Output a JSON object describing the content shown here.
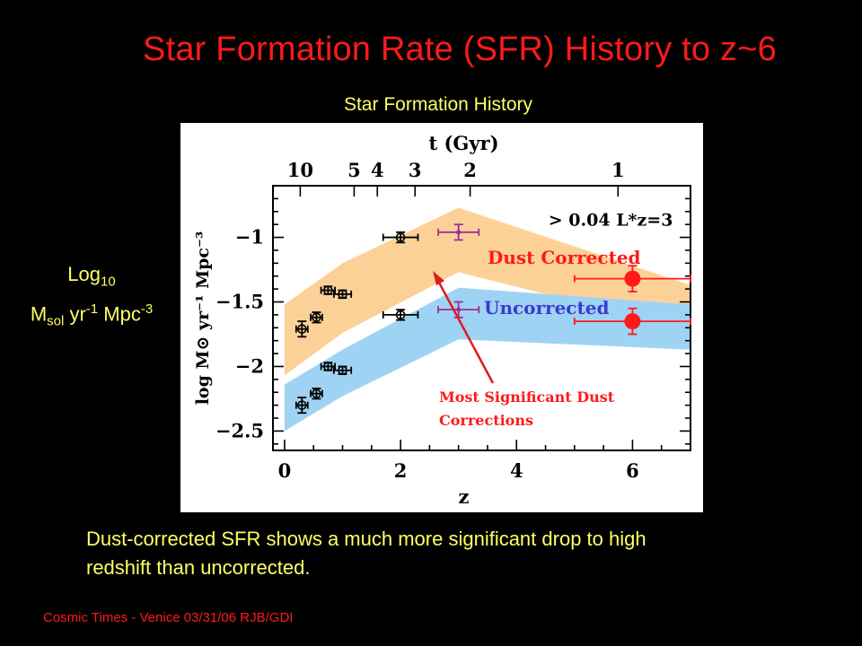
{
  "slide": {
    "title": "Star Formation Rate (SFR) History to z~6",
    "subtitle": "Star Formation History",
    "ylabel": {
      "main1": "Log",
      "sub1": "10",
      "m": "M",
      "m_sub": "sol",
      "yr": " yr",
      "yr_sup": "-1",
      "mpc": " Mpc",
      "mpc_sup": "-3"
    },
    "caption": "Dust-corrected SFR shows a much more significant drop to high redshift than uncorrected.",
    "footer": "Cosmic Times - Venice 03/31/06  RJB/GDI"
  },
  "chart_data": {
    "type": "scatter",
    "xlabel": "z",
    "ylabel": "log M⊙ yr⁻¹ Mpc⁻³",
    "top_axis_label": "t (Gyr)",
    "xlim": [
      -0.2,
      7
    ],
    "ylim": [
      -2.65,
      -0.6
    ],
    "x_ticks": [
      "0",
      "2",
      "4",
      "6"
    ],
    "y_ticks": [
      "-1",
      "-1.5",
      "-2",
      "-2.5"
    ],
    "top_ticks": [
      {
        "label": "10",
        "z": 0.27
      },
      {
        "label": "5",
        "z": 1.2
      },
      {
        "label": "4",
        "z": 1.6
      },
      {
        "label": "3",
        "z": 2.25
      },
      {
        "label": "2",
        "z": 3.2
      },
      {
        "label": "1",
        "z": 5.75
      }
    ],
    "luminosity_label": "> 0.04 L*z=3",
    "bands": [
      {
        "name": "Dust Corrected",
        "color": "#fcd198",
        "upper": [
          [
            0,
            -1.52
          ],
          [
            1,
            -1.2
          ],
          [
            3,
            -0.77
          ],
          [
            7,
            -1.37
          ]
        ],
        "lower": [
          [
            0,
            -2.07
          ],
          [
            1,
            -1.74
          ],
          [
            3,
            -1.27
          ],
          [
            7,
            -1.72
          ]
        ]
      },
      {
        "name": "Uncorrected",
        "color": "#9fd3f3",
        "upper": [
          [
            0,
            -2.14
          ],
          [
            1,
            -1.87
          ],
          [
            3,
            -1.39
          ],
          [
            7,
            -1.52
          ]
        ],
        "lower": [
          [
            0,
            -2.5
          ],
          [
            1,
            -2.23
          ],
          [
            3,
            -1.79
          ],
          [
            7,
            -1.87
          ]
        ]
      }
    ],
    "series": [
      {
        "name": "Dust Corrected",
        "points": [
          {
            "x": 0.3,
            "y": -1.71,
            "xerr": 0.1,
            "yerr": 0.06
          },
          {
            "x": 0.55,
            "y": -1.62,
            "xerr": 0.1,
            "yerr": 0.04
          },
          {
            "x": 0.75,
            "y": -1.41,
            "xerr": 0.12,
            "yerr": 0.03
          },
          {
            "x": 1.0,
            "y": -1.44,
            "xerr": 0.15,
            "yerr": 0.03
          },
          {
            "x": 2.0,
            "y": -1.0,
            "xerr": 0.3,
            "yerr": 0.04
          },
          {
            "x": 3.0,
            "y": -0.96,
            "xerr": 0.35,
            "yerr": 0.06,
            "color": "#9c2d9c"
          },
          {
            "x": 6.0,
            "y": -1.32,
            "xerr": 1.0,
            "yerr": 0.1,
            "color": "#ff1a1a",
            "large": true
          }
        ]
      },
      {
        "name": "Uncorrected",
        "points": [
          {
            "x": 0.3,
            "y": -2.3,
            "xerr": 0.1,
            "yerr": 0.06
          },
          {
            "x": 0.55,
            "y": -2.21,
            "xerr": 0.1,
            "yerr": 0.04
          },
          {
            "x": 0.75,
            "y": -2.0,
            "xerr": 0.12,
            "yerr": 0.03
          },
          {
            "x": 1.0,
            "y": -2.03,
            "xerr": 0.15,
            "yerr": 0.03
          },
          {
            "x": 2.0,
            "y": -1.6,
            "xerr": 0.3,
            "yerr": 0.04
          },
          {
            "x": 3.0,
            "y": -1.56,
            "xerr": 0.35,
            "yerr": 0.06,
            "color": "#9c2d9c"
          },
          {
            "x": 6.0,
            "y": -1.65,
            "xerr": 1.0,
            "yerr": 0.1,
            "color": "#ff1a1a",
            "large": true
          }
        ]
      }
    ],
    "annotations": {
      "dust_corrected_label": "Dust Corrected",
      "uncorrected_label": "Uncorrected",
      "arrow_text_line1": "Most Significant Dust",
      "arrow_text_line2": "Corrections"
    },
    "colors": {
      "dust_label": "#ff1a1a",
      "uncorr_label": "#3b3bcf",
      "arrow": "#e01b1b"
    }
  }
}
